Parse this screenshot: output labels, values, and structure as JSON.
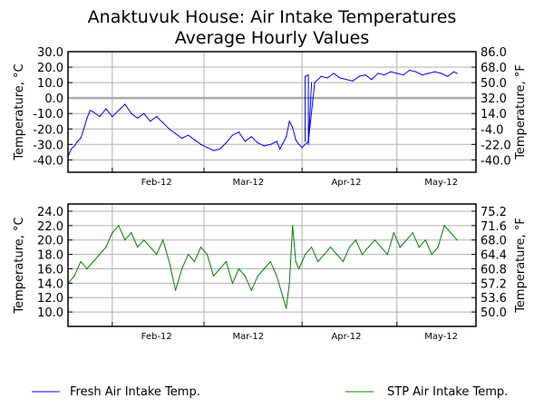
{
  "title_line1": "Anaktuvuk House: Air Intake Temperatures",
  "title_line2": "Average Hourly Values",
  "colors": {
    "fresh": "#0000ff",
    "stp": "#008000",
    "grid": "#b0b0b0",
    "zero_line": "#aaaaaa"
  },
  "legend": [
    {
      "label": "Fresh Air Intake Temp.",
      "color": "#0000ff"
    },
    {
      "label": "STP Air Intake Temp.",
      "color": "#008000"
    }
  ],
  "chart_data": [
    {
      "type": "line",
      "x_axis": {
        "kind": "date",
        "xlim": [
          "2012-01-18",
          "2012-05-26"
        ],
        "month_ticks": [
          "2012-02-01",
          "2012-03-01",
          "2012-04-01",
          "2012-05-01"
        ],
        "label_dates": [
          "2012-02-15",
          "2012-03-15",
          "2012-04-15",
          "2012-05-15"
        ],
        "labels": [
          "Feb-12",
          "Mar-12",
          "Apr-12",
          "May-12"
        ]
      },
      "ylabel_left": "Temperature, °C",
      "ylabel_right": "Temperature, °F",
      "ylim": [
        -48,
        30
      ],
      "yticks_left": [
        30,
        20,
        10,
        0,
        -10,
        -20,
        -30,
        -40
      ],
      "yticks_left_labels": [
        "30.0",
        "20.0",
        "10.0",
        "0.0",
        "-10.0",
        "-20.0",
        "-30.0",
        "-40.0"
      ],
      "yticks_right": [
        86,
        68,
        50,
        32,
        14,
        -4,
        -22,
        -40
      ],
      "yticks_right_labels": [
        "86.0",
        "68.0",
        "50.0",
        "32.0",
        "14.0",
        "-4.0",
        "-22.0",
        "-40.0"
      ],
      "grid": true,
      "series": [
        {
          "name": "Fresh Air Intake Temp.",
          "color": "#0000ff",
          "x": [
            "2012-01-18",
            "2012-01-19",
            "2012-01-20",
            "2012-01-21",
            "2012-01-22",
            "2012-01-23",
            "2012-01-24",
            "2012-01-25",
            "2012-01-26",
            "2012-01-28",
            "2012-01-30",
            "2012-02-01",
            "2012-02-03",
            "2012-02-05",
            "2012-02-07",
            "2012-02-09",
            "2012-02-11",
            "2012-02-13",
            "2012-02-15",
            "2012-02-17",
            "2012-02-19",
            "2012-02-21",
            "2012-02-23",
            "2012-02-25",
            "2012-02-27",
            "2012-02-29",
            "2012-03-02",
            "2012-03-04",
            "2012-03-06",
            "2012-03-08",
            "2012-03-10",
            "2012-03-12",
            "2012-03-14",
            "2012-03-16",
            "2012-03-18",
            "2012-03-20",
            "2012-03-22",
            "2012-03-24",
            "2012-03-25",
            "2012-03-26",
            "2012-03-27",
            "2012-03-28",
            "2012-03-29",
            "2012-03-30",
            "2012-03-31",
            "2012-04-01",
            "2012-04-03",
            "2012-04-05",
            "2012-04-07",
            "2012-04-09",
            "2012-04-11",
            "2012-04-13",
            "2012-04-15",
            "2012-04-17",
            "2012-04-19",
            "2012-04-21",
            "2012-04-23",
            "2012-04-25",
            "2012-04-27",
            "2012-04-29",
            "2012-05-01",
            "2012-05-03",
            "2012-05-05",
            "2012-05-07",
            "2012-05-09",
            "2012-05-11",
            "2012-05-13",
            "2012-05-15",
            "2012-05-17",
            "2012-05-19",
            "2012-05-20"
          ],
          "y": [
            -38,
            -33,
            -31,
            -28,
            -26,
            -20,
            -13,
            -8,
            -9,
            -12,
            -7,
            -12,
            -8,
            -4,
            -10,
            -13,
            -10,
            -15,
            -12,
            -16,
            -20,
            -23,
            -26,
            -24,
            -27,
            -30,
            -32,
            -34,
            -33,
            -29,
            -24,
            -22,
            -28,
            -25,
            -29,
            -31,
            -30,
            -28,
            -33,
            -29,
            -25,
            -15,
            -19,
            -27,
            -30,
            -32,
            -28,
            10,
            14,
            13,
            16,
            13,
            12,
            11,
            14,
            15,
            12,
            16,
            15,
            17,
            16,
            15,
            18,
            17,
            15,
            16,
            17,
            16,
            14,
            17,
            16
          ]
        },
        {
          "name": "",
          "color": "#0000ff",
          "x": [
            "2012-04-02",
            "2012-04-02",
            "2012-04-03",
            "2012-04-03",
            "2012-04-04"
          ],
          "y": [
            -28,
            14,
            15,
            -30,
            10
          ]
        }
      ]
    },
    {
      "type": "line",
      "x_axis": {
        "kind": "date",
        "xlim": [
          "2012-01-18",
          "2012-05-26"
        ],
        "month_ticks": [
          "2012-02-01",
          "2012-03-01",
          "2012-04-01",
          "2012-05-01"
        ],
        "label_dates": [
          "2012-02-15",
          "2012-03-15",
          "2012-04-15",
          "2012-05-15"
        ],
        "labels": [
          "Feb-12",
          "Mar-12",
          "Apr-12",
          "May-12"
        ]
      },
      "ylabel_left": "Temperature, °C",
      "ylabel_right": "Temperature, °F",
      "ylim": [
        8,
        25
      ],
      "yticks_left": [
        24,
        22,
        20,
        18,
        16,
        14,
        12,
        10
      ],
      "yticks_left_labels": [
        "24.0",
        "22.0",
        "20.0",
        "18.0",
        "16.0",
        "14.0",
        "12.0",
        "10.0"
      ],
      "yticks_right": [
        75.2,
        71.6,
        68.0,
        64.4,
        60.8,
        57.2,
        53.6,
        50.0
      ],
      "yticks_right_labels": [
        "75.2",
        "71.6",
        "68.0",
        "64.4",
        "60.8",
        "57.2",
        "53.6",
        "50.0"
      ],
      "grid": true,
      "series": [
        {
          "name": "STP Air Intake Temp.",
          "color": "#008000",
          "x": [
            "2012-01-18",
            "2012-01-20",
            "2012-01-22",
            "2012-01-24",
            "2012-01-26",
            "2012-01-28",
            "2012-01-30",
            "2012-02-01",
            "2012-02-03",
            "2012-02-05",
            "2012-02-07",
            "2012-02-09",
            "2012-02-11",
            "2012-02-13",
            "2012-02-15",
            "2012-02-17",
            "2012-02-19",
            "2012-02-21",
            "2012-02-23",
            "2012-02-25",
            "2012-02-27",
            "2012-02-29",
            "2012-03-02",
            "2012-03-04",
            "2012-03-06",
            "2012-03-08",
            "2012-03-10",
            "2012-03-12",
            "2012-03-14",
            "2012-03-16",
            "2012-03-18",
            "2012-03-20",
            "2012-03-22",
            "2012-03-24",
            "2012-03-26",
            "2012-03-27",
            "2012-03-28",
            "2012-03-29",
            "2012-03-30",
            "2012-03-31",
            "2012-04-02",
            "2012-04-04",
            "2012-04-06",
            "2012-04-08",
            "2012-04-10",
            "2012-04-12",
            "2012-04-14",
            "2012-04-16",
            "2012-04-18",
            "2012-04-20",
            "2012-04-22",
            "2012-04-24",
            "2012-04-26",
            "2012-04-28",
            "2012-04-30",
            "2012-05-02",
            "2012-05-04",
            "2012-05-06",
            "2012-05-08",
            "2012-05-10",
            "2012-05-12",
            "2012-05-14",
            "2012-05-16",
            "2012-05-18",
            "2012-05-20"
          ],
          "y": [
            14,
            15,
            17,
            16,
            17,
            18,
            19,
            21,
            22,
            20,
            21,
            19,
            20,
            19,
            18,
            20,
            17,
            13,
            16,
            18,
            17,
            19,
            18,
            15,
            16,
            17,
            14,
            16,
            15,
            13,
            15,
            16,
            17,
            15,
            12,
            10.5,
            14,
            22,
            17,
            16,
            18,
            19,
            17,
            18,
            19,
            18,
            17,
            19,
            20,
            18,
            19,
            20,
            19,
            18,
            21,
            19,
            20,
            21,
            19,
            20,
            18,
            19,
            22,
            21,
            20
          ]
        }
      ]
    }
  ]
}
